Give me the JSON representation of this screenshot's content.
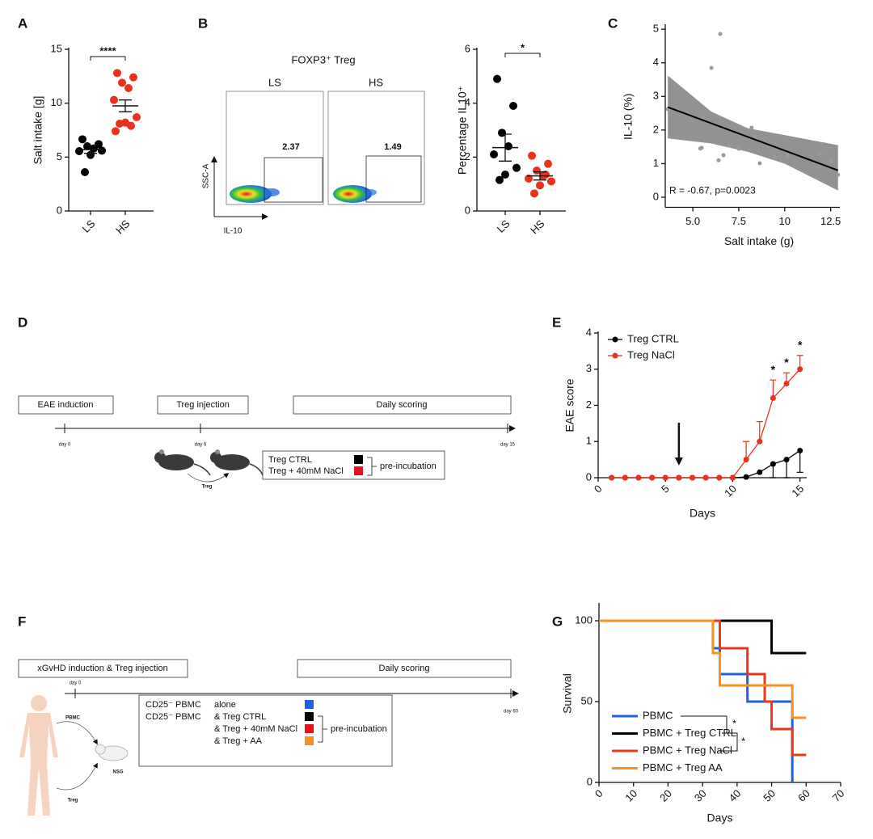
{
  "panel_labels": [
    "A",
    "B",
    "C",
    "D",
    "E",
    "F",
    "G"
  ],
  "flow": {
    "title": "FOXP3⁺ Treg",
    "left": "LS",
    "right": "HS",
    "left_value": "2.37",
    "right_value": "1.49",
    "y_axis": "SSC-A",
    "x_axis": "IL-10"
  },
  "protocol_d": {
    "steps": [
      "EAE induction",
      "Treg injection",
      "Daily scoring"
    ],
    "days": [
      "day 0",
      "day 6",
      "day 15"
    ],
    "legend": [
      "Treg CTRL",
      "Treg + 40mM NaCl"
    ],
    "bracket": "pre-incubation",
    "transfer": "Treg"
  },
  "protocol_f": {
    "steps": [
      "xGvHD induction & Treg injection",
      "Daily scoring"
    ],
    "days": [
      "day 0",
      "day 60"
    ],
    "donor": [
      "PBMC",
      "Treg"
    ],
    "recipient": "NSG",
    "legend": [
      [
        "CD25⁻ PBMC",
        "alone"
      ],
      [
        "CD25⁻ PBMC",
        "& Treg CTRL"
      ],
      [
        "& Treg + 40mM NaCl"
      ],
      [
        "& Treg + AA"
      ]
    ],
    "bracket": "pre-incubation"
  },
  "chart_data": [
    {
      "type": "strip",
      "categories": [
        "LS",
        "HS"
      ],
      "ylabel": "Salt intake [g]",
      "ylim": [
        0,
        15
      ],
      "yticks": [
        0,
        5,
        10,
        15
      ],
      "groups": [
        {
          "color": "#000000",
          "values": [
            6.65,
            6.2,
            6.0,
            5.8,
            5.55,
            5.6,
            5.2,
            3.6
          ],
          "mean": 5.7,
          "sem": 0.35
        },
        {
          "color": "#e8321e",
          "values": [
            12.8,
            12.4,
            11.9,
            11.4,
            10.3,
            8.7,
            8.2,
            8.1,
            7.9,
            7.4
          ],
          "mean": 9.75,
          "sem": 0.55
        }
      ],
      "significance": "****"
    },
    {
      "type": "strip",
      "categories": [
        "LS",
        "HS"
      ],
      "ylabel": "Percentage IL10⁺",
      "ylim": [
        0,
        6
      ],
      "yticks": [
        0,
        2,
        4,
        6
      ],
      "groups": [
        {
          "color": "#000000",
          "values": [
            4.9,
            3.9,
            2.9,
            2.4,
            2.1,
            1.6,
            1.35,
            1.15
          ],
          "mean": 2.35,
          "sem": 0.5
        },
        {
          "color": "#e8321e",
          "values": [
            2.05,
            1.75,
            1.5,
            1.3,
            1.2,
            1.1,
            0.95,
            0.65,
            1.35
          ],
          "mean": 1.3,
          "sem": 0.15
        }
      ],
      "significance": "*"
    },
    {
      "type": "scatter",
      "xlabel": "Salt intake (g)",
      "ylabel": "IL-10 (%)",
      "xlim": [
        3.5,
        13
      ],
      "ylim": [
        -0.3,
        5.1
      ],
      "xticks": [
        {
          "value": 5,
          "label": "5.0"
        },
        7.5,
        10,
        12.5
      ],
      "yticks": [
        0,
        1,
        2,
        3,
        4,
        5
      ],
      "x": [
        3.64,
        6.49,
        6.01,
        5.57,
        5.48,
        5.4,
        6.4,
        6.67,
        7.0,
        7.5,
        8.2,
        8.38,
        8.64,
        9.43,
        10.18,
        11.9,
        12.55,
        12.9
      ],
      "values": [
        2.62,
        4.86,
        3.85,
        2.38,
        1.47,
        1.45,
        1.1,
        1.25,
        1.54,
        1.44,
        2.07,
        1.78,
        1.01,
        1.2,
        1.25,
        1.27,
        1.08,
        0.67
      ],
      "color": "#9a9a9a",
      "fit": {
        "x": [
          3.64,
          12.9
        ],
        "y": [
          2.68,
          0.8
        ],
        "color": "#000000"
      },
      "band": {
        "x": [
          3.64,
          6,
          8,
          10,
          12.9
        ],
        "upper": [
          3.62,
          2.55,
          2.05,
          1.85,
          1.55
        ],
        "lower": [
          1.75,
          1.6,
          1.35,
          1.0,
          0.2
        ],
        "color": "#7f7f7f"
      },
      "annotation": "R = -0.67, p=0.0023"
    },
    {
      "type": "line",
      "xlabel": "Days",
      "ylabel": "EAE score",
      "x": [
        1,
        2,
        3,
        4,
        5,
        6,
        7,
        8,
        9,
        10,
        11,
        12,
        13,
        14,
        15
      ],
      "xlim": [
        0,
        15.5
      ],
      "xticks": [
        0,
        5,
        10,
        15
      ],
      "ylim": [
        0,
        4
      ],
      "yticks": [
        0,
        1,
        2,
        3,
        4
      ],
      "series": [
        {
          "name": "Treg CTRL",
          "color": "#000000",
          "values": [
            0,
            0,
            0,
            0,
            0,
            0,
            0,
            0,
            0,
            0,
            0.02,
            0.15,
            0.38,
            0.5,
            0.75
          ],
          "errors": [
            null,
            null,
            null,
            null,
            null,
            null,
            null,
            null,
            null,
            null,
            null,
            null,
            0.38,
            0.5,
            0.6
          ],
          "error_direction": "down"
        },
        {
          "name": "Treg NaCl",
          "color": "#e8321e",
          "values": [
            0,
            0,
            0,
            0,
            0,
            0,
            0,
            0,
            0,
            0,
            0.5,
            1.0,
            2.2,
            2.6,
            3.0
          ],
          "errors": [
            null,
            null,
            null,
            null,
            null,
            null,
            null,
            null,
            null,
            null,
            0.5,
            0.55,
            0.5,
            0.3,
            0.38
          ],
          "error_direction": "up"
        }
      ],
      "annotations": [
        {
          "x": 13,
          "label": "*"
        },
        {
          "x": 14,
          "label": "*"
        },
        {
          "x": 15,
          "label": "*"
        }
      ],
      "arrow_x": 6
    },
    {
      "type": "step",
      "xlabel": "Days",
      "ylabel": "Survival",
      "xlim": [
        0,
        70
      ],
      "xticks": [
        0,
        10,
        20,
        30,
        40,
        50,
        60,
        70
      ],
      "ylim": [
        0,
        110
      ],
      "yticks": [
        0,
        50,
        100
      ],
      "series": [
        {
          "name": "PBMC",
          "color": "#1f5fe0",
          "x": [
            0,
            33,
            35,
            43,
            56
          ],
          "values": [
            100,
            83,
            67,
            50,
            0
          ]
        },
        {
          "name": "PBMC + Treg CTRL",
          "color": "#000000",
          "x": [
            0,
            50,
            60
          ],
          "values": [
            100,
            80,
            80
          ]
        },
        {
          "name": "PBMC + Treg NaCl",
          "color": "#e83a1a",
          "x": [
            0,
            35,
            43,
            48,
            50,
            56,
            60
          ],
          "values": [
            100,
            83,
            67,
            50,
            33,
            17,
            17
          ]
        },
        {
          "name": "PBMC + Treg AA",
          "color": "#f39323",
          "x": [
            0,
            33,
            35,
            56,
            60
          ],
          "values": [
            100,
            80,
            60,
            40,
            40
          ]
        }
      ],
      "significance": [
        "*",
        "*"
      ]
    }
  ]
}
